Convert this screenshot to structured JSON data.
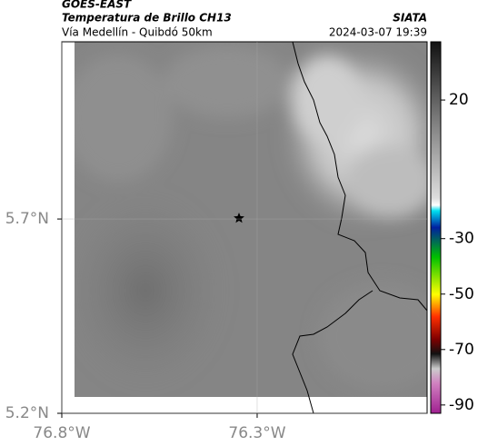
{
  "header": {
    "product": "GOES-EAST",
    "title": "Temperatura de Brillo CH13",
    "subtitle": "Vía Medellín - Quibdó 50km",
    "source": "SIATA",
    "datetime": "2024-03-07 19:39"
  },
  "map": {
    "xlim": [
      -76.8,
      -75.865
    ],
    "ylim": [
      5.2,
      6.156
    ],
    "xticks": [
      {
        "value": -76.8,
        "label": "76.8°W"
      },
      {
        "value": -76.3,
        "label": "76.3°W"
      }
    ],
    "yticks": [
      {
        "value": 5.7,
        "label": "5.7°N"
      },
      {
        "value": 5.2,
        "label": "5.2°N"
      }
    ]
  },
  "colorbar": {
    "lim": [
      41,
      -93
    ],
    "ticks": [
      20,
      -30,
      -50,
      -70,
      -90
    ]
  }
}
